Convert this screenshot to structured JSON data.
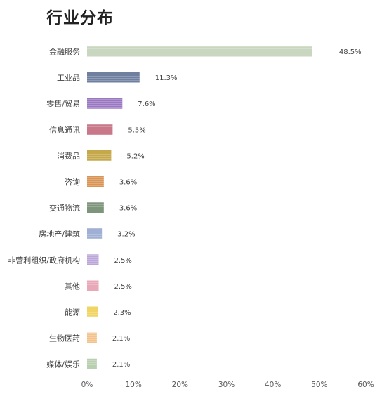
{
  "chart_data": {
    "type": "bar",
    "orientation": "horizontal",
    "title": "行业分布",
    "xlabel": "",
    "ylabel": "",
    "xlim": [
      0,
      60
    ],
    "x_ticks": [
      "0%",
      "10%",
      "20%",
      "30%",
      "40%",
      "50%",
      "60%"
    ],
    "grid": false,
    "categories": [
      "金融服务",
      "工业品",
      "零售/贸易",
      "信息通讯",
      "消费品",
      "咨询",
      "交通物流",
      "房地产/建筑",
      "非营利组织/政府机构",
      "其他",
      "能源",
      "生物医药",
      "媒体/娱乐"
    ],
    "values": [
      48.5,
      11.3,
      7.6,
      5.5,
      5.2,
      3.6,
      3.6,
      3.2,
      2.5,
      2.5,
      2.3,
      2.1,
      2.1
    ],
    "data_labels": [
      "48.5%",
      "11.3%",
      "7.6%",
      "5.5%",
      "5.2%",
      "3.6%",
      "3.6%",
      "3.2%",
      "2.5%",
      "2.5%",
      "2.3%",
      "2.1%",
      "2.1%"
    ],
    "colors": [
      "#c9d6c0",
      "#6e7fa0",
      "#9a77c2",
      "#c9788a",
      "#c4a84a",
      "#d99455",
      "#7d957a",
      "#9fb0d4",
      "#bca6d8",
      "#e8a8b8",
      "#f0d565",
      "#f3c28c",
      "#b8cfb0"
    ]
  }
}
